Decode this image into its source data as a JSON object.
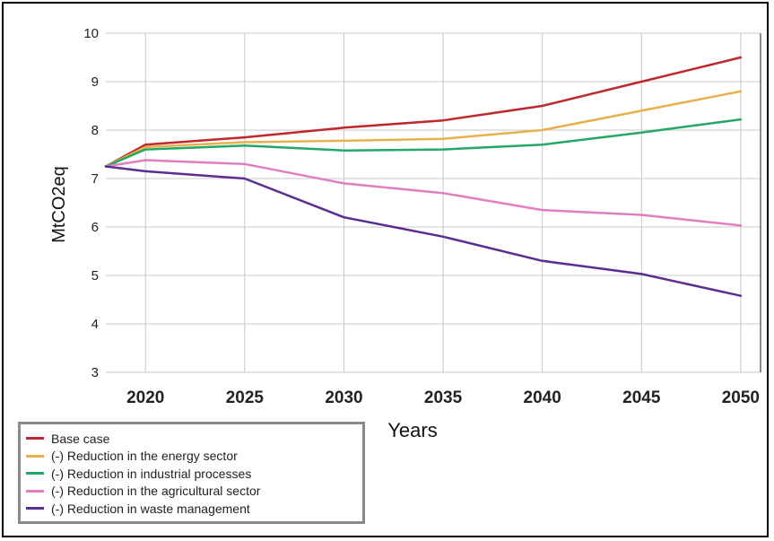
{
  "chart_data": {
    "type": "line",
    "title": "",
    "xlabel": "Years",
    "ylabel": "MtCO2eq",
    "xlim": [
      2018,
      2051
    ],
    "ylim": [
      3,
      10
    ],
    "x_ticks": [
      2020,
      2025,
      2030,
      2035,
      2040,
      2045,
      2050
    ],
    "y_ticks": [
      3,
      4,
      5,
      6,
      7,
      8,
      9,
      10
    ],
    "grid": true,
    "legend_position": "bottom-left",
    "series": [
      {
        "name": "Base case",
        "color": "#c0272d",
        "x": [
          2018,
          2020,
          2025,
          2030,
          2035,
          2040,
          2045,
          2050
        ],
        "y": [
          7.25,
          7.7,
          7.85,
          8.05,
          8.2,
          8.5,
          9.0,
          9.5
        ]
      },
      {
        "name": "(-) Reduction in the energy sector",
        "color": "#e8b04a",
        "x": [
          2018,
          2020,
          2025,
          2030,
          2035,
          2040,
          2045,
          2050
        ],
        "y": [
          7.25,
          7.65,
          7.75,
          7.78,
          7.82,
          8.0,
          8.4,
          8.8
        ]
      },
      {
        "name": "(-) Reduction in industrial processes",
        "color": "#22a867",
        "x": [
          2018,
          2020,
          2025,
          2030,
          2035,
          2040,
          2045,
          2050
        ],
        "y": [
          7.25,
          7.6,
          7.68,
          7.58,
          7.6,
          7.7,
          7.95,
          8.22
        ]
      },
      {
        "name": "(-) Reduction in the agricultural sector",
        "color": "#e27fbf",
        "x": [
          2018,
          2020,
          2025,
          2030,
          2035,
          2040,
          2045,
          2050
        ],
        "y": [
          7.25,
          7.38,
          7.3,
          6.9,
          6.7,
          6.35,
          6.25,
          6.03
        ]
      },
      {
        "name": "(-) Reduction in waste management",
        "color": "#5b2d91",
        "x": [
          2018,
          2020,
          2025,
          2030,
          2035,
          2040,
          2045,
          2050
        ],
        "y": [
          7.25,
          7.15,
          7.0,
          6.2,
          5.8,
          5.3,
          5.03,
          4.58
        ]
      }
    ]
  }
}
